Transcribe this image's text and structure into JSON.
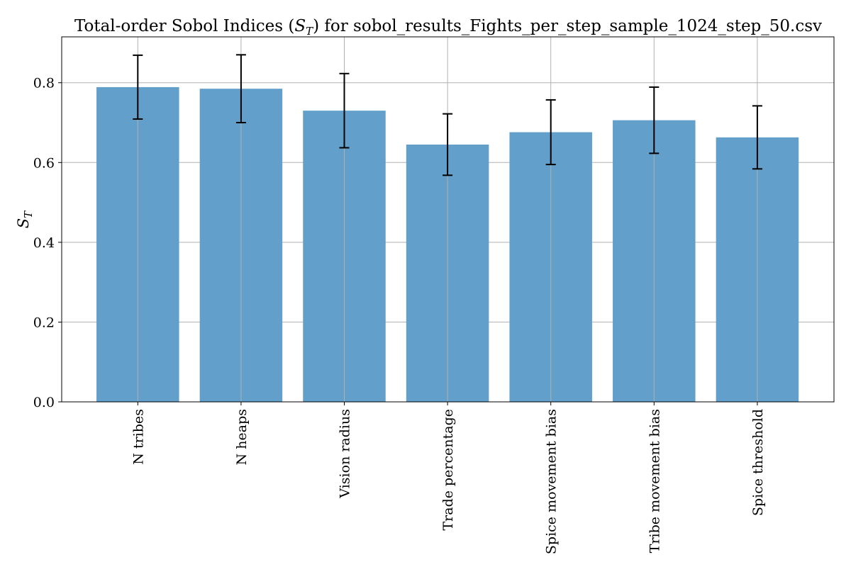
{
  "chart_data": {
    "type": "bar",
    "title": "Total-order Sobol Indices (S_T) for sobol_results_Fights_per_step_sample_1024_step_50.csv",
    "title_parts": {
      "prefix": "Total-order Sobol Indices (",
      "symbol": "S",
      "subscript": "T",
      "suffix": ") for sobol_results_Fights_per_step_sample_1024_step_50.csv"
    },
    "xlabel": "",
    "ylabel": "S_T",
    "ylabel_parts": {
      "symbol": "S",
      "subscript": "T"
    },
    "categories": [
      "N tribes",
      "N heaps",
      "Vision radius",
      "Trade percentage",
      "Spice movement bias",
      "Tribe movement bias",
      "Spice threshold"
    ],
    "values": [
      0.789,
      0.785,
      0.73,
      0.645,
      0.676,
      0.706,
      0.663
    ],
    "errors": [
      0.08,
      0.085,
      0.093,
      0.077,
      0.081,
      0.083,
      0.079
    ],
    "ylim": [
      0,
      0.915
    ],
    "yticks": [
      0.0,
      0.2,
      0.4,
      0.6,
      0.8
    ],
    "ytick_labels": [
      "0.0",
      "0.2",
      "0.4",
      "0.6",
      "0.8"
    ],
    "grid": true,
    "bar_color": "#62a0cb",
    "error_color": "#000000",
    "grid_color": "#b0b0b0"
  }
}
